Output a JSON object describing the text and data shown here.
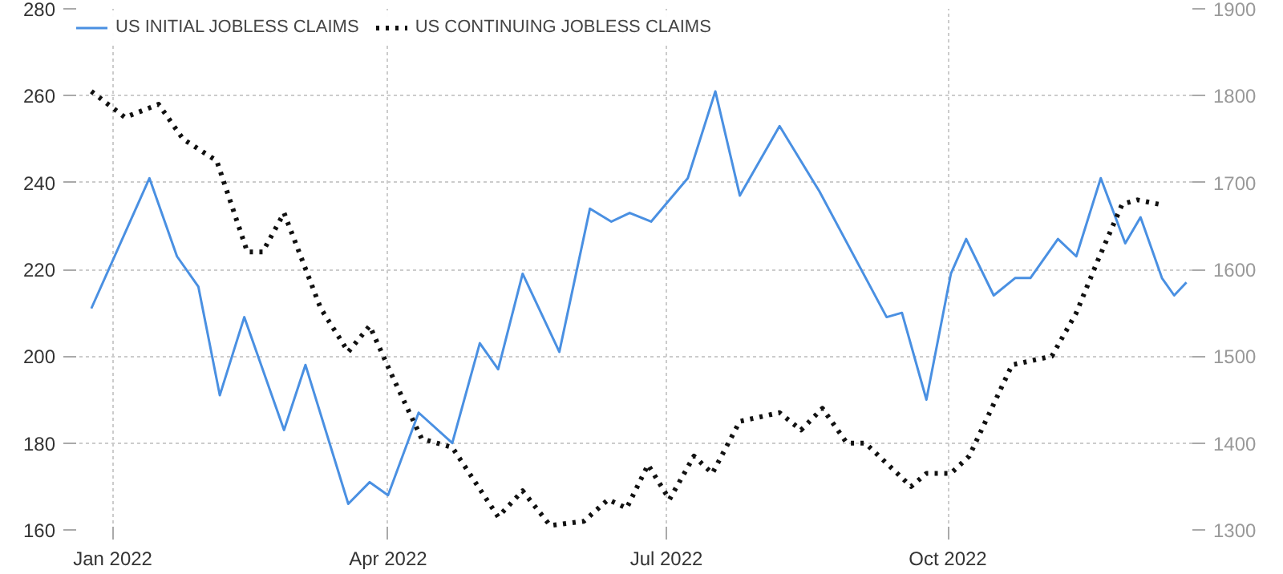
{
  "chart_data": {
    "type": "line",
    "legend": "top left",
    "grid": true,
    "xlim": [
      "2021-12-19",
      "2022-12-21"
    ],
    "xticks": [
      {
        "value": "2022-01-01",
        "label": "Jan 2022"
      },
      {
        "value": "2022-04-01",
        "label": "Apr 2022"
      },
      {
        "value": "2022-07-01",
        "label": "Jul 2022"
      },
      {
        "value": "2022-10-01",
        "label": "Oct 2022"
      }
    ],
    "ylim": [
      160,
      280
    ],
    "yticks": [
      160,
      180,
      200,
      220,
      240,
      260,
      280
    ],
    "y2lim": [
      1300,
      1900
    ],
    "y2ticks": [
      1300,
      1400,
      1500,
      1600,
      1700,
      1800,
      1900
    ],
    "series": [
      {
        "name": "US INITIAL JOBLESS CLAIMS",
        "color": "#4a90e2",
        "line_style": "solid",
        "x": [
          "2021-12-25",
          "2022-01-13",
          "2022-01-22",
          "2022-01-29",
          "2022-02-05",
          "2022-02-13",
          "2022-02-26",
          "2022-03-05",
          "2022-03-19",
          "2022-03-26",
          "2022-04-01",
          "2022-04-11",
          "2022-04-22",
          "2022-05-01",
          "2022-05-07",
          "2022-05-15",
          "2022-05-27",
          "2022-06-06",
          "2022-06-13",
          "2022-06-19",
          "2022-06-26",
          "2022-07-08",
          "2022-07-17",
          "2022-07-25",
          "2022-08-07",
          "2022-08-20",
          "2022-09-11",
          "2022-09-16",
          "2022-09-24",
          "2022-10-02",
          "2022-10-07",
          "2022-10-16",
          "2022-10-23",
          "2022-10-28",
          "2022-11-06",
          "2022-11-12",
          "2022-11-20",
          "2022-11-28",
          "2022-12-03",
          "2022-12-10",
          "2022-12-14",
          "2022-12-18"
        ],
        "values": [
          211,
          241,
          223,
          216,
          191,
          209,
          183,
          198,
          166,
          171,
          168,
          187,
          180,
          203,
          197,
          219,
          201,
          234,
          231,
          233,
          231,
          241,
          261,
          237,
          253,
          238,
          209,
          210,
          190,
          219,
          227,
          214,
          218,
          218,
          227,
          223,
          241,
          226,
          232,
          218,
          214,
          217
        ]
      },
      {
        "name": "US CONTINUING JOBLESS CLAIMS",
        "color": "#111111",
        "line_style": "dotted",
        "axis": "y2",
        "x": [
          "2021-12-25",
          "2022-01-05",
          "2022-01-16",
          "2022-01-24",
          "2022-02-04",
          "2022-02-14",
          "2022-02-19",
          "2022-02-26",
          "2022-03-10",
          "2022-03-19",
          "2022-03-26",
          "2022-04-02",
          "2022-04-12",
          "2022-04-22",
          "2022-05-07",
          "2022-05-15",
          "2022-05-24",
          "2022-06-04",
          "2022-06-12",
          "2022-06-18",
          "2022-06-25",
          "2022-07-02",
          "2022-07-10",
          "2022-07-16",
          "2022-07-25",
          "2022-08-07",
          "2022-08-14",
          "2022-08-21",
          "2022-08-29",
          "2022-09-04",
          "2022-09-19",
          "2022-09-24",
          "2022-10-02",
          "2022-10-08",
          "2022-10-22",
          "2022-11-04",
          "2022-11-12",
          "2022-11-19",
          "2022-11-27",
          "2022-12-02",
          "2022-12-09"
        ],
        "values": [
          1805,
          1775,
          1790,
          1750,
          1725,
          1620,
          1620,
          1665,
          1555,
          1505,
          1535,
          1480,
          1405,
          1395,
          1315,
          1345,
          1305,
          1310,
          1335,
          1325,
          1375,
          1335,
          1385,
          1365,
          1425,
          1435,
          1415,
          1440,
          1400,
          1400,
          1350,
          1365,
          1365,
          1385,
          1490,
          1500,
          1550,
          1610,
          1675,
          1680,
          1675
        ]
      }
    ]
  }
}
